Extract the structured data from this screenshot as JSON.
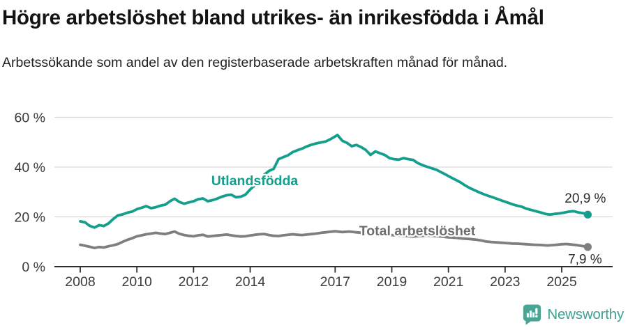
{
  "chart_data": {
    "type": "line",
    "title": "Högre arbetslöshet bland utrikes- än inrikesfödda i Åmål",
    "subtitle": "Arbetssökande som andel av den registerbaserade arbetskraften månad för månad.",
    "unit": "%",
    "xlabel": "",
    "ylabel": "",
    "ylim": [
      0,
      63
    ],
    "xlim_years": [
      2007.1,
      2026.8
    ],
    "grid": "horizontal",
    "y_tick_values": [
      0,
      20,
      40,
      60
    ],
    "y_tick_labels": [
      "0 %",
      "20 %",
      "40 %",
      "60 %"
    ],
    "x_tick_years": [
      2008,
      2010,
      2012,
      2014,
      2017,
      2019,
      2021,
      2023,
      2025
    ],
    "x_tick_labels": [
      "2008",
      "2010",
      "2012",
      "2014",
      "2017",
      "2019",
      "2021",
      "2023",
      "2025"
    ],
    "series": [
      {
        "name": "Total arbetslöshet",
        "color": "#7f7f7f",
        "label_color": "#6e6e6e",
        "end_value": 7.9,
        "end_label": "7,9 %",
        "points": [
          [
            2008.0,
            8.8
          ],
          [
            2008.17,
            8.4
          ],
          [
            2008.33,
            8.0
          ],
          [
            2008.5,
            7.5
          ],
          [
            2008.67,
            7.9
          ],
          [
            2008.83,
            7.7
          ],
          [
            2009.0,
            8.2
          ],
          [
            2009.17,
            8.6
          ],
          [
            2009.33,
            9.1
          ],
          [
            2009.5,
            10.0
          ],
          [
            2009.67,
            10.8
          ],
          [
            2009.83,
            11.4
          ],
          [
            2010.0,
            12.2
          ],
          [
            2010.17,
            12.6
          ],
          [
            2010.33,
            13.0
          ],
          [
            2010.5,
            13.3
          ],
          [
            2010.67,
            13.6
          ],
          [
            2010.83,
            13.3
          ],
          [
            2011.0,
            13.1
          ],
          [
            2011.17,
            13.6
          ],
          [
            2011.33,
            14.1
          ],
          [
            2011.5,
            13.2
          ],
          [
            2011.67,
            12.7
          ],
          [
            2011.83,
            12.4
          ],
          [
            2012.0,
            12.2
          ],
          [
            2012.17,
            12.6
          ],
          [
            2012.33,
            12.8
          ],
          [
            2012.5,
            12.1
          ],
          [
            2012.67,
            12.3
          ],
          [
            2012.83,
            12.5
          ],
          [
            2013.0,
            12.7
          ],
          [
            2013.17,
            12.9
          ],
          [
            2013.33,
            12.6
          ],
          [
            2013.5,
            12.3
          ],
          [
            2013.67,
            12.1
          ],
          [
            2013.83,
            12.2
          ],
          [
            2014.0,
            12.5
          ],
          [
            2014.17,
            12.8
          ],
          [
            2014.33,
            13.0
          ],
          [
            2014.5,
            13.1
          ],
          [
            2014.67,
            12.7
          ],
          [
            2014.83,
            12.4
          ],
          [
            2015.0,
            12.3
          ],
          [
            2015.17,
            12.6
          ],
          [
            2015.33,
            12.8
          ],
          [
            2015.5,
            13.0
          ],
          [
            2015.67,
            12.8
          ],
          [
            2015.83,
            12.7
          ],
          [
            2016.0,
            12.9
          ],
          [
            2016.17,
            13.1
          ],
          [
            2016.33,
            13.3
          ],
          [
            2016.5,
            13.6
          ],
          [
            2016.67,
            13.8
          ],
          [
            2016.83,
            14.0
          ],
          [
            2017.0,
            14.2
          ],
          [
            2017.25,
            13.9
          ],
          [
            2017.5,
            14.1
          ],
          [
            2017.75,
            13.8
          ],
          [
            2018.0,
            13.5
          ],
          [
            2018.25,
            13.3
          ],
          [
            2018.5,
            13.1
          ],
          [
            2018.75,
            12.9
          ],
          [
            2019.0,
            12.7
          ],
          [
            2019.25,
            12.5
          ],
          [
            2019.5,
            12.3
          ],
          [
            2019.75,
            12.1
          ],
          [
            2020.0,
            12.3
          ],
          [
            2020.25,
            12.5
          ],
          [
            2020.5,
            12.3
          ],
          [
            2020.75,
            12.1
          ],
          [
            2021.0,
            11.8
          ],
          [
            2021.25,
            11.6
          ],
          [
            2021.5,
            11.3
          ],
          [
            2021.75,
            11.1
          ],
          [
            2022.0,
            10.8
          ],
          [
            2022.17,
            10.5
          ],
          [
            2022.33,
            10.1
          ],
          [
            2022.5,
            9.9
          ],
          [
            2022.75,
            9.7
          ],
          [
            2023.0,
            9.5
          ],
          [
            2023.25,
            9.3
          ],
          [
            2023.5,
            9.2
          ],
          [
            2023.75,
            9.0
          ],
          [
            2024.0,
            8.8
          ],
          [
            2024.25,
            8.7
          ],
          [
            2024.5,
            8.5
          ],
          [
            2024.75,
            8.7
          ],
          [
            2025.0,
            9.0
          ],
          [
            2025.17,
            9.1
          ],
          [
            2025.33,
            8.9
          ],
          [
            2025.5,
            8.7
          ],
          [
            2025.67,
            8.4
          ],
          [
            2025.92,
            7.9
          ]
        ]
      },
      {
        "name": "Utlandsfödda",
        "color": "#149e8e",
        "label_color": "#149e8e",
        "end_value": 20.9,
        "end_label": "20,9 %",
        "points": [
          [
            2008.0,
            18.2
          ],
          [
            2008.17,
            17.8
          ],
          [
            2008.33,
            16.4
          ],
          [
            2008.5,
            15.7
          ],
          [
            2008.67,
            16.7
          ],
          [
            2008.83,
            16.3
          ],
          [
            2009.0,
            17.4
          ],
          [
            2009.17,
            19.2
          ],
          [
            2009.33,
            20.6
          ],
          [
            2009.5,
            21.0
          ],
          [
            2009.67,
            21.7
          ],
          [
            2009.83,
            22.1
          ],
          [
            2010.0,
            23.1
          ],
          [
            2010.17,
            23.7
          ],
          [
            2010.33,
            24.3
          ],
          [
            2010.5,
            23.5
          ],
          [
            2010.67,
            23.9
          ],
          [
            2010.83,
            24.5
          ],
          [
            2011.0,
            24.9
          ],
          [
            2011.17,
            26.3
          ],
          [
            2011.33,
            27.3
          ],
          [
            2011.5,
            26.0
          ],
          [
            2011.67,
            25.3
          ],
          [
            2011.83,
            25.8
          ],
          [
            2012.0,
            26.3
          ],
          [
            2012.17,
            27.1
          ],
          [
            2012.33,
            27.4
          ],
          [
            2012.5,
            26.3
          ],
          [
            2012.67,
            26.7
          ],
          [
            2012.83,
            27.3
          ],
          [
            2013.0,
            28.1
          ],
          [
            2013.17,
            28.7
          ],
          [
            2013.33,
            28.9
          ],
          [
            2013.5,
            27.9
          ],
          [
            2013.67,
            28.1
          ],
          [
            2013.83,
            28.9
          ],
          [
            2014.0,
            31.0
          ],
          [
            2014.17,
            32.8
          ],
          [
            2014.33,
            34.5
          ],
          [
            2014.5,
            37.0
          ],
          [
            2014.67,
            38.5
          ],
          [
            2014.83,
            39.3
          ],
          [
            2015.0,
            43.2
          ],
          [
            2015.17,
            44.0
          ],
          [
            2015.33,
            44.7
          ],
          [
            2015.5,
            46.0
          ],
          [
            2015.67,
            46.8
          ],
          [
            2015.83,
            47.4
          ],
          [
            2016.0,
            48.3
          ],
          [
            2016.17,
            49.0
          ],
          [
            2016.33,
            49.5
          ],
          [
            2016.5,
            49.9
          ],
          [
            2016.67,
            50.3
          ],
          [
            2016.83,
            51.2
          ],
          [
            2017.0,
            52.3
          ],
          [
            2017.08,
            52.9
          ],
          [
            2017.25,
            50.6
          ],
          [
            2017.42,
            49.7
          ],
          [
            2017.58,
            48.4
          ],
          [
            2017.75,
            48.9
          ],
          [
            2017.92,
            48.0
          ],
          [
            2018.08,
            46.9
          ],
          [
            2018.25,
            44.9
          ],
          [
            2018.42,
            46.3
          ],
          [
            2018.58,
            45.6
          ],
          [
            2018.75,
            44.9
          ],
          [
            2018.92,
            43.6
          ],
          [
            2019.08,
            43.2
          ],
          [
            2019.25,
            43.0
          ],
          [
            2019.42,
            43.6
          ],
          [
            2019.58,
            43.2
          ],
          [
            2019.75,
            42.9
          ],
          [
            2019.92,
            41.6
          ],
          [
            2020.08,
            40.8
          ],
          [
            2020.25,
            40.1
          ],
          [
            2020.42,
            39.5
          ],
          [
            2020.58,
            38.9
          ],
          [
            2020.75,
            37.9
          ],
          [
            2020.92,
            36.9
          ],
          [
            2021.08,
            35.9
          ],
          [
            2021.25,
            34.9
          ],
          [
            2021.42,
            33.9
          ],
          [
            2021.58,
            32.7
          ],
          [
            2021.75,
            31.6
          ],
          [
            2021.92,
            30.7
          ],
          [
            2022.08,
            29.9
          ],
          [
            2022.25,
            29.1
          ],
          [
            2022.42,
            28.4
          ],
          [
            2022.58,
            27.8
          ],
          [
            2022.75,
            27.1
          ],
          [
            2022.92,
            26.4
          ],
          [
            2023.08,
            25.8
          ],
          [
            2023.25,
            25.1
          ],
          [
            2023.42,
            24.5
          ],
          [
            2023.58,
            24.1
          ],
          [
            2023.75,
            23.3
          ],
          [
            2023.92,
            22.8
          ],
          [
            2024.08,
            22.3
          ],
          [
            2024.25,
            21.8
          ],
          [
            2024.42,
            21.2
          ],
          [
            2024.58,
            20.9
          ],
          [
            2024.75,
            21.2
          ],
          [
            2024.92,
            21.4
          ],
          [
            2025.08,
            21.7
          ],
          [
            2025.25,
            22.1
          ],
          [
            2025.42,
            22.3
          ],
          [
            2025.58,
            21.8
          ],
          [
            2025.75,
            21.5
          ],
          [
            2025.92,
            20.9
          ]
        ]
      }
    ]
  },
  "colors": {
    "teal_line": "#149e8e",
    "gray_line": "#7f7f7f",
    "gray_label": "#6e6e6e",
    "gridline": "#d8d8d8",
    "axis_line": "#2d2d2d",
    "tick_text": "#3b3b3b",
    "end_label_text": "#2a2a2a",
    "title_text": "#131313",
    "brand_teal": "#3f9f92",
    "brand_icon_teal": "#4ba396"
  },
  "footer": {
    "brand": "Newsworthy"
  }
}
